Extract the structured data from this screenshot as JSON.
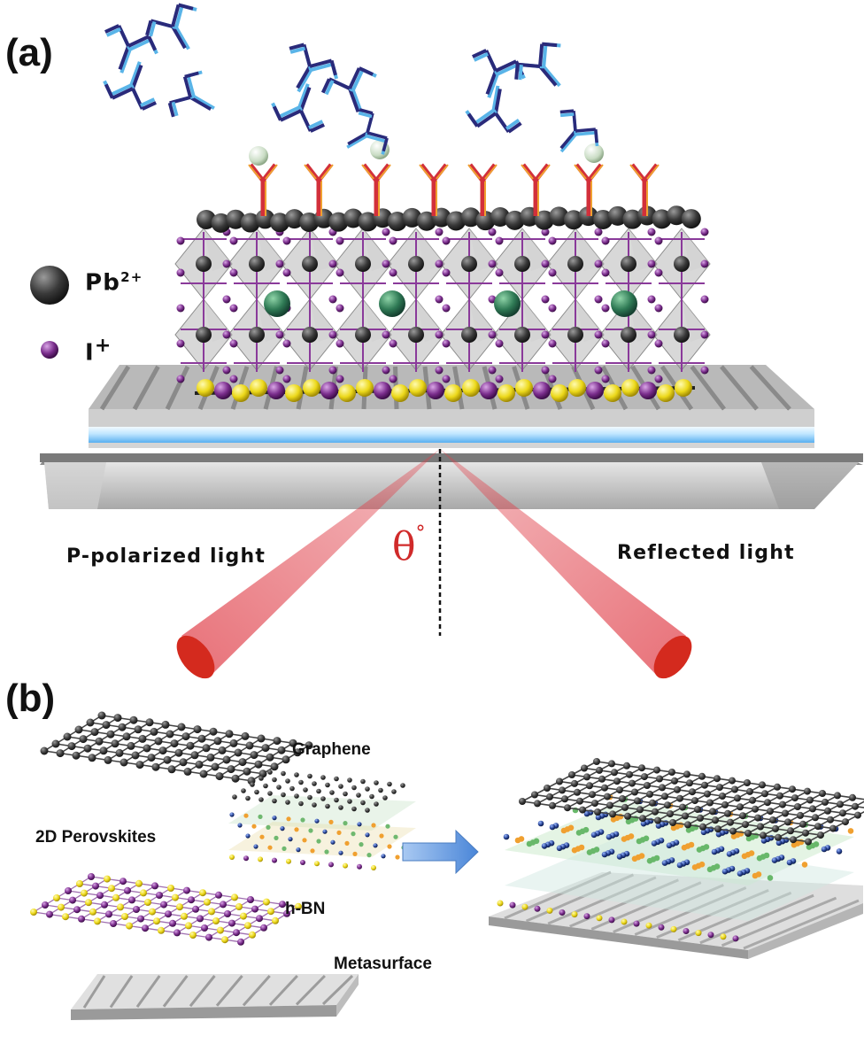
{
  "panel_a": {
    "label": "(a)",
    "legend": [
      {
        "symbol_name": "lead-ion-sphere",
        "text": "Pb",
        "sup": "2+",
        "color": "#3a3a3a"
      },
      {
        "symbol_name": "iodine-ion-sphere",
        "text": "I",
        "sup": "+",
        "color": "#6b2a7a"
      }
    ],
    "incident_label": "P-polarized light",
    "reflected_label": "Reflected light",
    "angle_symbol": "θ",
    "angle_unit": "°"
  },
  "panel_b": {
    "label": "(b)",
    "layers": {
      "graphene": "Graphene",
      "perovskite": "2D Perovskites",
      "hbn": "h-BN",
      "metasurface": "Metasurface"
    }
  },
  "colors": {
    "beam": "#e0404a",
    "beam_end": "#d42a1e",
    "antibody_dark": "#2a2a7a",
    "antibody_light": "#59b4e8",
    "receptor_red": "#d2303a",
    "receptor_orange": "#f0a030",
    "lead": "#3a3a3a",
    "iodine": "#8a3a9a",
    "sulfur_yellow": "#f0e020",
    "cation_green": "#2f7a55",
    "arrow_blue": "#7aaee6"
  }
}
